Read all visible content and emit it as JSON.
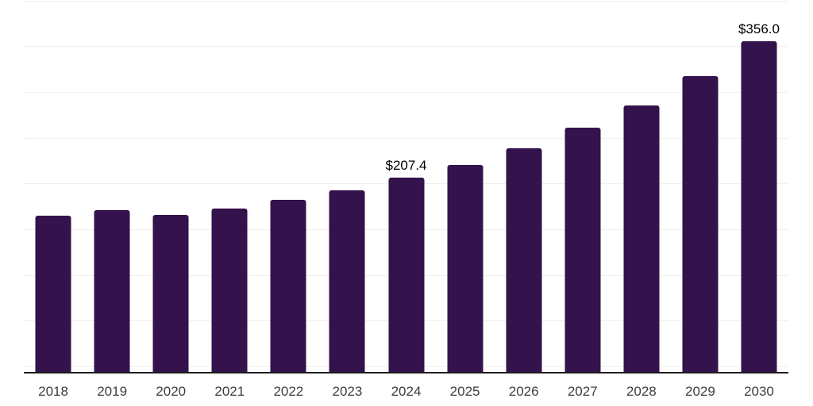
{
  "chart_data": {
    "type": "bar",
    "title": "",
    "xlabel": "",
    "ylabel": "",
    "categories": [
      "2018",
      "2019",
      "2020",
      "2021",
      "2022",
      "2023",
      "2024",
      "2025",
      "2026",
      "2027",
      "2028",
      "2029",
      "2030"
    ],
    "values": [
      165.3,
      171.4,
      166.1,
      173.5,
      182.6,
      193.4,
      207.4,
      220.9,
      239.7,
      261.5,
      286.0,
      318.0,
      356.0
    ],
    "data_labels": {
      "2024": "$207.4",
      "2030": "$356.0"
    },
    "ylim": [
      0,
      400
    ],
    "gridline_step": 50,
    "grid_on": true,
    "y_axis_labels_visible": false,
    "legend_position": "none",
    "colors": {
      "bar": "#34124b",
      "gridline": "#f0f0f0",
      "axis_line": "#1d1d1d",
      "tick_label": "#3d3d3d",
      "data_label": "#000000",
      "background": "#ffffff"
    }
  }
}
